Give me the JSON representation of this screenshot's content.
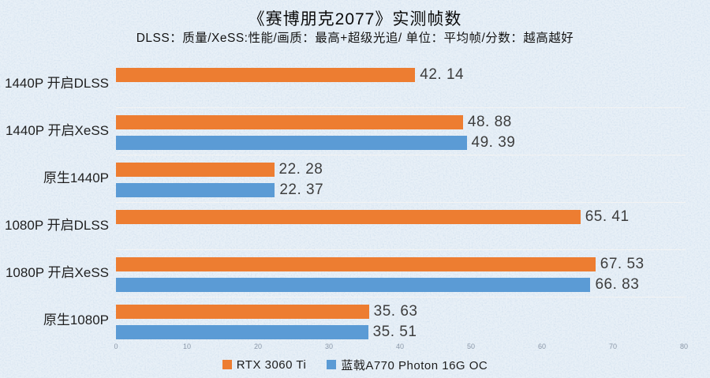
{
  "chart_data": {
    "type": "bar",
    "orientation": "horizontal",
    "title": "《赛博朋克2077》实测帧数",
    "subtitle": "DLSS：质量/XeSS:性能/画质：最高+超级光追/ 单位：平均帧/分数：越高越好",
    "categories": [
      "1440P 开启DLSS",
      "1440P 开启XeSS",
      "原生1440P",
      "1080P 开启DLSS",
      "1080P 开启XeSS",
      "原生1080P"
    ],
    "series": [
      {
        "name": "RTX 3060 Ti",
        "color": "#ED7D31",
        "values": [
          42.14,
          48.88,
          22.28,
          65.41,
          67.53,
          35.63
        ],
        "labels": [
          "42. 14",
          "48. 88",
          "22. 28",
          "65. 41",
          "67. 53",
          "35. 63"
        ]
      },
      {
        "name": "蓝戟A770 Photon 16G OC",
        "color": "#5B9BD5",
        "values": [
          null,
          49.39,
          22.37,
          null,
          66.83,
          35.51
        ],
        "labels": [
          "",
          "49. 39",
          "22. 37",
          "",
          "66. 83",
          "35. 51"
        ]
      }
    ],
    "xlim": [
      0,
      80
    ],
    "xticks": [
      0,
      10,
      20,
      30,
      40,
      50,
      60,
      70,
      80
    ],
    "legend_position": "bottom",
    "grid": "faint horizontal category separators",
    "background_color": "#d5e3f0"
  }
}
